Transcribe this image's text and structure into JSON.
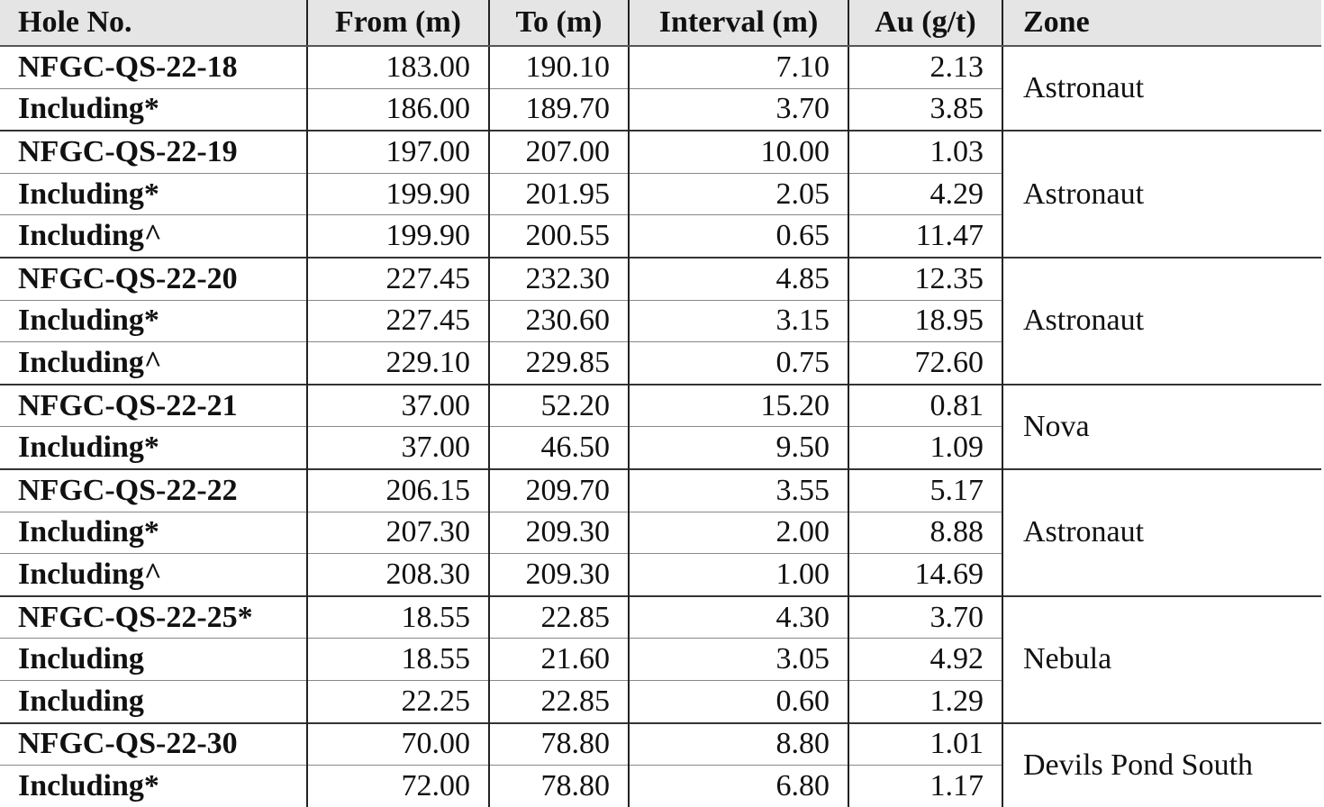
{
  "table": {
    "header": [
      "Hole No.",
      "From (m)",
      "To (m)",
      "Interval (m)",
      "Au (g/t)",
      "Zone"
    ],
    "groups": [
      {
        "zone": "Astronaut",
        "rows": [
          [
            "NFGC-QS-22-18",
            "183.00",
            "190.10",
            "7.10",
            "2.13"
          ],
          [
            "Including*",
            "186.00",
            "189.70",
            "3.70",
            "3.85"
          ]
        ]
      },
      {
        "zone": "Astronaut",
        "rows": [
          [
            "NFGC-QS-22-19",
            "197.00",
            "207.00",
            "10.00",
            "1.03"
          ],
          [
            "Including*",
            "199.90",
            "201.95",
            "2.05",
            "4.29"
          ],
          [
            "Including^",
            "199.90",
            "200.55",
            "0.65",
            "11.47"
          ]
        ]
      },
      {
        "zone": "Astronaut",
        "rows": [
          [
            "NFGC-QS-22-20",
            "227.45",
            "232.30",
            "4.85",
            "12.35"
          ],
          [
            "Including*",
            "227.45",
            "230.60",
            "3.15",
            "18.95"
          ],
          [
            "Including^",
            "229.10",
            "229.85",
            "0.75",
            "72.60"
          ]
        ]
      },
      {
        "zone": "Nova",
        "rows": [
          [
            "NFGC-QS-22-21",
            "37.00",
            "52.20",
            "15.20",
            "0.81"
          ],
          [
            "Including*",
            "37.00",
            "46.50",
            "9.50",
            "1.09"
          ]
        ]
      },
      {
        "zone": "Astronaut",
        "rows": [
          [
            "NFGC-QS-22-22",
            "206.15",
            "209.70",
            "3.55",
            "5.17"
          ],
          [
            "Including*",
            "207.30",
            "209.30",
            "2.00",
            "8.88"
          ],
          [
            "Including^",
            "208.30",
            "209.30",
            "1.00",
            "14.69"
          ]
        ]
      },
      {
        "zone": "Nebula",
        "rows": [
          [
            "NFGC-QS-22-25*",
            "18.55",
            "22.85",
            "4.30",
            "3.70"
          ],
          [
            "Including",
            "18.55",
            "21.60",
            "3.05",
            "4.92"
          ],
          [
            "Including",
            "22.25",
            "22.85",
            "0.60",
            "1.29"
          ]
        ]
      },
      {
        "zone": "Devils Pond South",
        "rows": [
          [
            "NFGC-QS-22-30",
            "70.00",
            "78.80",
            "8.80",
            "1.01"
          ],
          [
            "Including*",
            "72.00",
            "78.80",
            "6.80",
            "1.17"
          ]
        ]
      }
    ]
  }
}
